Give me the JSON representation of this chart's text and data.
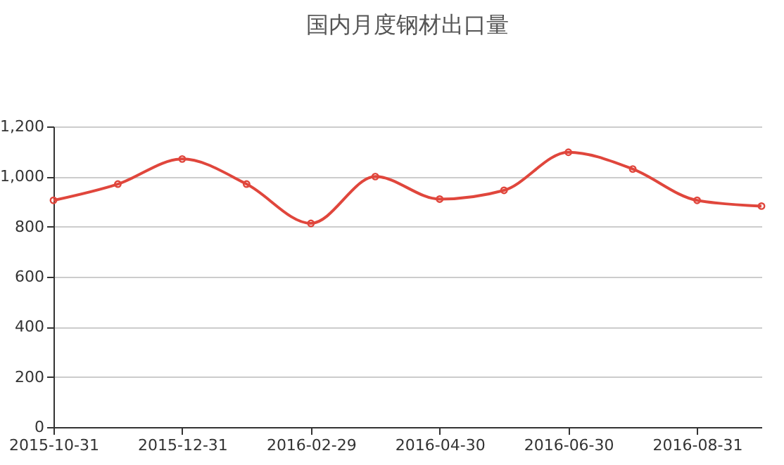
{
  "chart_data": {
    "type": "line",
    "title": "国内月度钢材出口量",
    "categories": [
      "2015-10-31",
      null,
      "2015-12-31",
      null,
      "2016-02-29",
      null,
      "2016-04-30",
      null,
      "2016-06-30",
      null,
      "2016-08-31",
      null
    ],
    "series": [
      {
        "color": "#e0463c",
        "values": [
          905,
          970,
          1070,
          970,
          813,
          1000,
          910,
          945,
          1097,
          1030,
          905,
          882
        ]
      }
    ],
    "ylim": [
      0,
      1200
    ],
    "yticks": [
      0,
      200,
      400,
      600,
      800,
      {
        "value": 1000,
        "label": "1,000"
      },
      {
        "value": 1200,
        "label": "1,200"
      }
    ],
    "grid": "y",
    "marker": "circle",
    "line_style": "solid"
  }
}
